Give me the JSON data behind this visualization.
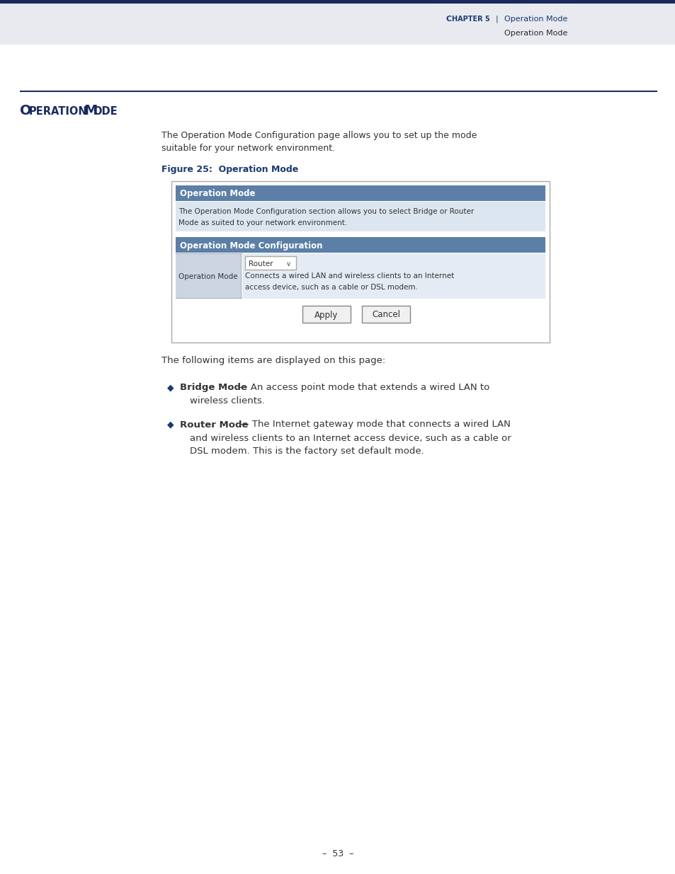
{
  "page_bg": "#ffffff",
  "header_bar_color": "#1a2a5e",
  "header_bg": "#e8eaf0",
  "header_text_chapter": "C",
  "header_text_chapter2": "HAPTER",
  "header_text_5": " 5",
  "header_text_pipe": "  |  ",
  "header_text_right1": "Operation Mode",
  "header_text_right2": "Operation Mode",
  "header_text_color": "#1a3a6e",
  "header_text_color2": "#2a2a2a",
  "section_line_color": "#1a2a5e",
  "section_title_color": "#1a2a5e",
  "body_text1": "The Operation Mode Configuration page allows you to set up the mode",
  "body_text2": "suitable for your network environment.",
  "figure_label": "Figure 25:  Operation Mode",
  "figure_label_color": "#1a3a6e",
  "panel_border_color": "#aaaaaa",
  "panel_bg": "#ffffff",
  "section_header1_text": "Operation Mode",
  "section_header1_bg": "#5b7fa6",
  "section_header1_text_color": "#ffffff",
  "desc_text1": "The Operation Mode Configuration section allows you to select Bridge or Router",
  "desc_text2": "Mode as suited to your network environment.",
  "desc_bg": "#dce6f0",
  "section_header2_text": "Operation Mode Configuration",
  "section_header2_bg": "#5b7fa6",
  "section_header2_text_color": "#ffffff",
  "op_mode_label": "Operation Mode",
  "op_mode_label_bg": "#cdd5e3",
  "dropdown_text": "Router",
  "dropdown_bg": "#ffffff",
  "dropdown_border": "#aaaaaa",
  "op_mode_desc1": "Connects a wired LAN and wireless clients to an Internet",
  "op_mode_desc2": "access device, such as a cable or DSL modem.",
  "op_mode_desc_bg": "#e4ebf4",
  "btn_apply_text": "Apply",
  "btn_cancel_text": "Cancel",
  "btn_border": "#888888",
  "btn_bg": "#f0f0f0",
  "following_text": "The following items are displayed on this page:",
  "bullet_color": "#1a3a6e",
  "bullet1_bold": "Bridge Mode",
  "bullet1_rest": " — An access point mode that extends a wired LAN to",
  "bullet1_line2": "wireless clients.",
  "bullet2_bold": "Router Mode",
  "bullet2_rest": " — The Internet gateway mode that connects a wired LAN",
  "bullet2_line2": "and wireless clients to an Internet access device, such as a cable or",
  "bullet2_line3": "DSL modem. This is the factory set default mode.",
  "footer_text": "–  53  –",
  "footer_color": "#333333",
  "text_color_body": "#333333"
}
